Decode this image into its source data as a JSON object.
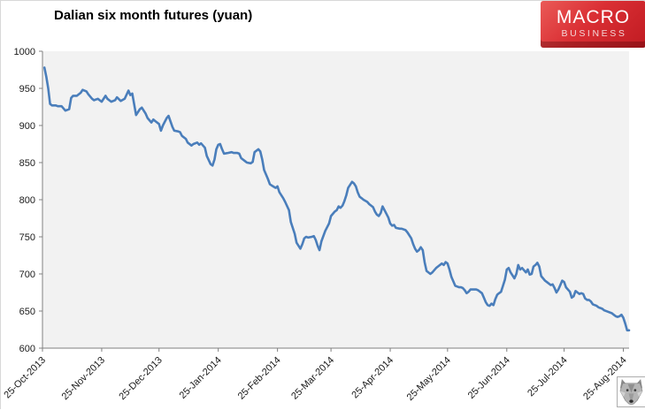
{
  "title": "Dalian six month futures (yuan)",
  "logo": {
    "line1": "MACRO",
    "line2": "BUSINESS",
    "bg_color": "#d6272e"
  },
  "colors": {
    "line": "#4a7ebb",
    "plot_bg": "#f2f2f2",
    "axis": "#808080",
    "tick_label": "#1a1a1a"
  },
  "footer_icon": "wolf-emblem",
  "chart_data": {
    "type": "line",
    "title": "Dalian six month futures (yuan)",
    "xlabel": "",
    "ylabel": "",
    "ylim": [
      600,
      1000
    ],
    "y_ticks": [
      600,
      650,
      700,
      750,
      800,
      850,
      900,
      950,
      1000
    ],
    "x_tick_labels": [
      "25-Oct-2013",
      "25-Nov-2013",
      "25-Dec-2013",
      "25-Jan-2014",
      "25-Feb-2014",
      "25-Mar-2014",
      "25-Apr-2014",
      "25-May-2014",
      "25-Jun-2014",
      "25-Jul-2014",
      "25-Aug-2014"
    ],
    "x_tick_days": [
      0,
      31,
      61,
      92,
      123,
      151,
      182,
      212,
      243,
      273,
      304
    ],
    "x_range_days": [
      0,
      307
    ],
    "grid": false,
    "legend_position": "none",
    "series": [
      {
        "name": "Dalian six month futures (yuan)",
        "points": [
          [
            1,
            978
          ],
          [
            2,
            966
          ],
          [
            3,
            950
          ],
          [
            4,
            929
          ],
          [
            5,
            927
          ],
          [
            7,
            927
          ],
          [
            8,
            926
          ],
          [
            10,
            926
          ],
          [
            12,
            920
          ],
          [
            14,
            922
          ],
          [
            15,
            937
          ],
          [
            16,
            940
          ],
          [
            18,
            940
          ],
          [
            20,
            944
          ],
          [
            21,
            948
          ],
          [
            23,
            946
          ],
          [
            24,
            942
          ],
          [
            26,
            936
          ],
          [
            27,
            934
          ],
          [
            29,
            936
          ],
          [
            31,
            932
          ],
          [
            33,
            940
          ],
          [
            34,
            936
          ],
          [
            36,
            932
          ],
          [
            38,
            934
          ],
          [
            39,
            938
          ],
          [
            41,
            933
          ],
          [
            43,
            936
          ],
          [
            45,
            947
          ],
          [
            46,
            941
          ],
          [
            47,
            943
          ],
          [
            49,
            914
          ],
          [
            51,
            922
          ],
          [
            52,
            924
          ],
          [
            54,
            916
          ],
          [
            55,
            910
          ],
          [
            57,
            904
          ],
          [
            58,
            908
          ],
          [
            59,
            906
          ],
          [
            61,
            902
          ],
          [
            62,
            893
          ],
          [
            63,
            900
          ],
          [
            65,
            910
          ],
          [
            66,
            913
          ],
          [
            68,
            898
          ],
          [
            69,
            893
          ],
          [
            71,
            892
          ],
          [
            72,
            891
          ],
          [
            73,
            886
          ],
          [
            75,
            882
          ],
          [
            76,
            877
          ],
          [
            78,
            873
          ],
          [
            79,
            875
          ],
          [
            81,
            877
          ],
          [
            82,
            874
          ],
          [
            83,
            876
          ],
          [
            85,
            870
          ],
          [
            86,
            859
          ],
          [
            88,
            848
          ],
          [
            89,
            846
          ],
          [
            90,
            854
          ],
          [
            91,
            868
          ],
          [
            92,
            874
          ],
          [
            93,
            875
          ],
          [
            94,
            868
          ],
          [
            95,
            862
          ],
          [
            97,
            863
          ],
          [
            99,
            864
          ],
          [
            100,
            863
          ],
          [
            102,
            863
          ],
          [
            103,
            862
          ],
          [
            104,
            856
          ],
          [
            106,
            852
          ],
          [
            107,
            850
          ],
          [
            109,
            849
          ],
          [
            110,
            851
          ],
          [
            111,
            864
          ],
          [
            113,
            868
          ],
          [
            114,
            865
          ],
          [
            115,
            854
          ],
          [
            116,
            840
          ],
          [
            118,
            828
          ],
          [
            119,
            821
          ],
          [
            120,
            819
          ],
          [
            122,
            816
          ],
          [
            123,
            818
          ],
          [
            124,
            810
          ],
          [
            126,
            802
          ],
          [
            127,
            797
          ],
          [
            129,
            786
          ],
          [
            130,
            770
          ],
          [
            132,
            754
          ],
          [
            133,
            742
          ],
          [
            135,
            734
          ],
          [
            136,
            740
          ],
          [
            137,
            748
          ],
          [
            138,
            750
          ],
          [
            139,
            749
          ],
          [
            141,
            750
          ],
          [
            142,
            751
          ],
          [
            143,
            746
          ],
          [
            144,
            738
          ],
          [
            145,
            732
          ],
          [
            146,
            744
          ],
          [
            148,
            758
          ],
          [
            150,
            768
          ],
          [
            151,
            778
          ],
          [
            153,
            784
          ],
          [
            154,
            786
          ],
          [
            155,
            791
          ],
          [
            156,
            789
          ],
          [
            157,
            792
          ],
          [
            158,
            798
          ],
          [
            159,
            806
          ],
          [
            160,
            816
          ],
          [
            162,
            824
          ],
          [
            163,
            822
          ],
          [
            164,
            818
          ],
          [
            165,
            810
          ],
          [
            166,
            804
          ],
          [
            167,
            802
          ],
          [
            168,
            800
          ],
          [
            170,
            797
          ],
          [
            171,
            794
          ],
          [
            173,
            790
          ],
          [
            174,
            784
          ],
          [
            175,
            780
          ],
          [
            176,
            778
          ],
          [
            177,
            782
          ],
          [
            178,
            791
          ],
          [
            179,
            786
          ],
          [
            181,
            776
          ],
          [
            182,
            768
          ],
          [
            183,
            765
          ],
          [
            184,
            766
          ],
          [
            185,
            762
          ],
          [
            187,
            761
          ],
          [
            188,
            761
          ],
          [
            190,
            759
          ],
          [
            191,
            756
          ],
          [
            193,
            748
          ],
          [
            194,
            740
          ],
          [
            195,
            734
          ],
          [
            196,
            730
          ],
          [
            197,
            732
          ],
          [
            198,
            736
          ],
          [
            199,
            732
          ],
          [
            200,
            716
          ],
          [
            201,
            704
          ],
          [
            203,
            700
          ],
          [
            204,
            702
          ],
          [
            206,
            708
          ],
          [
            207,
            710
          ],
          [
            209,
            714
          ],
          [
            210,
            712
          ],
          [
            211,
            716
          ],
          [
            212,
            714
          ],
          [
            213,
            706
          ],
          [
            214,
            696
          ],
          [
            216,
            684
          ],
          [
            218,
            682
          ],
          [
            219,
            682
          ],
          [
            220,
            681
          ],
          [
            221,
            678
          ],
          [
            222,
            674
          ],
          [
            223,
            676
          ],
          [
            224,
            679
          ],
          [
            225,
            679
          ],
          [
            227,
            679
          ],
          [
            228,
            678
          ],
          [
            230,
            674
          ],
          [
            231,
            668
          ],
          [
            232,
            662
          ],
          [
            233,
            658
          ],
          [
            234,
            657
          ],
          [
            235,
            660
          ],
          [
            236,
            658
          ],
          [
            237,
            666
          ],
          [
            238,
            672
          ],
          [
            239,
            674
          ],
          [
            240,
            676
          ],
          [
            241,
            684
          ],
          [
            242,
            692
          ],
          [
            243,
            706
          ],
          [
            244,
            708
          ],
          [
            245,
            702
          ],
          [
            247,
            694
          ],
          [
            248,
            700
          ],
          [
            249,
            712
          ],
          [
            250,
            706
          ],
          [
            251,
            708
          ],
          [
            253,
            702
          ],
          [
            254,
            706
          ],
          [
            255,
            699
          ],
          [
            256,
            700
          ],
          [
            257,
            710
          ],
          [
            258,
            712
          ],
          [
            259,
            715
          ],
          [
            260,
            710
          ],
          [
            261,
            697
          ],
          [
            263,
            691
          ],
          [
            264,
            689
          ],
          [
            266,
            685
          ],
          [
            267,
            686
          ],
          [
            268,
            681
          ],
          [
            269,
            675
          ],
          [
            270,
            679
          ],
          [
            271,
            685
          ],
          [
            272,
            691
          ],
          [
            273,
            689
          ],
          [
            274,
            682
          ],
          [
            276,
            676
          ],
          [
            277,
            668
          ],
          [
            278,
            670
          ],
          [
            279,
            677
          ],
          [
            280,
            675
          ],
          [
            281,
            673
          ],
          [
            282,
            674
          ],
          [
            283,
            673
          ],
          [
            284,
            667
          ],
          [
            285,
            665
          ],
          [
            286,
            665
          ],
          [
            287,
            663
          ],
          [
            288,
            659
          ],
          [
            290,
            657
          ],
          [
            291,
            655
          ],
          [
            292,
            654
          ],
          [
            293,
            653
          ],
          [
            294,
            651
          ],
          [
            296,
            649
          ],
          [
            298,
            647
          ],
          [
            299,
            645
          ],
          [
            300,
            643
          ],
          [
            301,
            642
          ],
          [
            302,
            643
          ],
          [
            303,
            645
          ],
          [
            304,
            641
          ],
          [
            305,
            633
          ],
          [
            306,
            624
          ],
          [
            307,
            624
          ]
        ]
      }
    ]
  }
}
